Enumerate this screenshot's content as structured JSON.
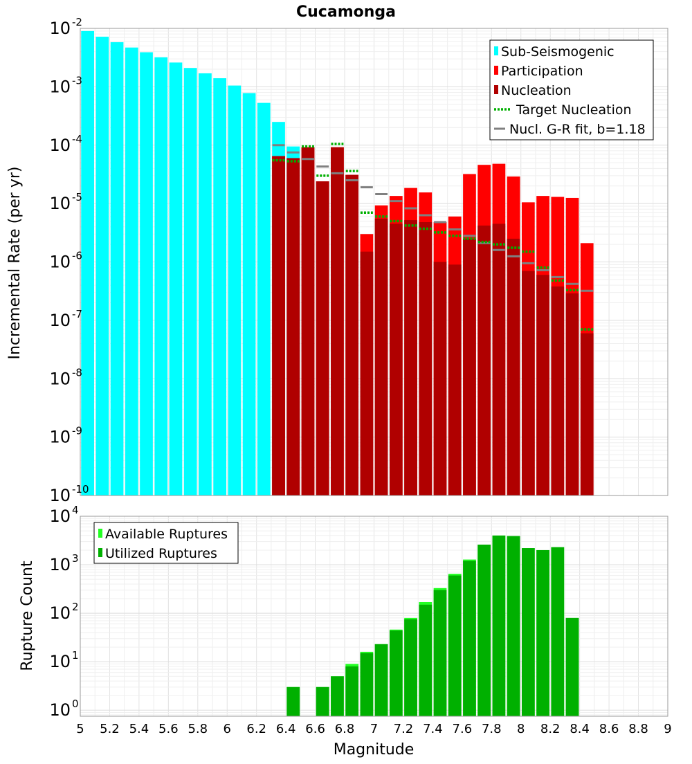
{
  "chart_data": [
    {
      "type": "bar",
      "title": "Cucamonga",
      "ylabel": "Incremental Rate (per yr)",
      "xlabel": "",
      "xlim": [
        5,
        9
      ],
      "ylim": [
        1e-10,
        0.01
      ],
      "yscale": "log",
      "y_ticks": [
        {
          "base": "10",
          "exp": "-2"
        },
        {
          "base": "10",
          "exp": "-3"
        },
        {
          "base": "10",
          "exp": "-4"
        },
        {
          "base": "10",
          "exp": "-5"
        },
        {
          "base": "10",
          "exp": "-6"
        },
        {
          "base": "10",
          "exp": "-7"
        },
        {
          "base": "10",
          "exp": "-8"
        },
        {
          "base": "10",
          "exp": "-9"
        },
        {
          "base": "10",
          "exp": "-10"
        }
      ],
      "grid": true,
      "legend_position": "top-right",
      "colors": {
        "sub": "#00ffff",
        "participation": "#ff0000",
        "nucleation": "#b00000",
        "target": "#00b000",
        "gr_fit": "#808080"
      },
      "legend": [
        {
          "name": "Sub-Seismogenic",
          "style": "bar",
          "color": "#00ffff"
        },
        {
          "name": "Participation",
          "style": "bar",
          "color": "#ff0000"
        },
        {
          "name": "Nucleation",
          "style": "bar",
          "color": "#b00000"
        },
        {
          "name": "Target Nucleation",
          "style": "dotted",
          "color": "#00b000"
        },
        {
          "name": "Nucl. G-R fit, b=1.18",
          "style": "line",
          "color": "#808080"
        }
      ],
      "series": [
        {
          "name": "Sub-Seismogenic",
          "x": [
            5.05,
            5.15,
            5.25,
            5.35,
            5.45,
            5.55,
            5.65,
            5.75,
            5.85,
            5.95,
            6.05,
            6.15,
            6.25,
            6.35,
            6.45
          ],
          "values": [
            0.009,
            0.0072,
            0.0058,
            0.0047,
            0.0039,
            0.0032,
            0.0026,
            0.0021,
            0.0017,
            0.0014,
            0.00105,
            0.00078,
            0.00053,
            0.00025,
            9.5e-05
          ]
        },
        {
          "name": "Participation",
          "x": [
            6.35,
            6.45,
            6.55,
            6.65,
            6.75,
            6.85,
            6.95,
            7.05,
            7.15,
            7.25,
            7.35,
            7.45,
            7.55,
            7.65,
            7.75,
            7.85,
            7.95,
            8.05,
            8.15,
            8.25,
            8.35,
            8.45
          ],
          "values": [
            6.5e-05,
            6e-05,
            9.2e-05,
            2.4e-05,
            9.2e-05,
            3.1e-05,
            3e-06,
            9.3e-06,
            1.35e-05,
            1.85e-05,
            1.55e-05,
            4.8e-06,
            6e-06,
            3.2e-05,
            4.6e-05,
            4.8e-05,
            2.9e-05,
            1.05e-05,
            1.35e-05,
            1.3e-05,
            1.25e-05,
            2.1e-06
          ]
        },
        {
          "name": "Nucleation",
          "x": [
            6.35,
            6.45,
            6.55,
            6.65,
            6.75,
            6.85,
            6.95,
            7.05,
            7.15,
            7.25,
            7.35,
            7.45,
            7.55,
            7.65,
            7.75,
            7.85,
            7.95,
            8.05,
            8.15,
            8.25,
            8.35,
            8.45
          ],
          "values": [
            6.5e-05,
            6e-05,
            9.2e-05,
            2.4e-05,
            9.2e-05,
            3.1e-05,
            1.5e-06,
            5.5e-06,
            4.5e-06,
            5.2e-06,
            4.8e-06,
            1e-06,
            9e-07,
            2.5e-06,
            4.2e-06,
            4.5e-06,
            2.5e-06,
            7e-07,
            6e-07,
            3.8e-07,
            2.9e-07,
            6e-08
          ]
        },
        {
          "name": "Target Nucleation",
          "x": [
            6.35,
            6.45,
            6.55,
            6.65,
            6.75,
            6.85,
            6.95,
            7.05,
            7.15,
            7.25,
            7.35,
            7.45,
            7.55,
            7.65,
            7.75,
            7.85,
            7.95,
            8.05,
            8.15,
            8.25,
            8.35,
            8.45
          ],
          "values": [
            5.5e-05,
            5.3e-05,
            9.5e-05,
            3e-05,
            0.000105,
            3.6e-05,
            7e-06,
            6e-06,
            5e-06,
            4.2e-06,
            3.7e-06,
            3.2e-06,
            2.8e-06,
            2.5e-06,
            2.2e-06,
            2e-06,
            1.75e-06,
            1.5e-06,
            8e-07,
            4.8e-07,
            3.3e-07,
            7e-08
          ]
        },
        {
          "name": "Nucl. G-R fit, b=1.18",
          "x": [
            6.35,
            6.45,
            6.55,
            6.65,
            6.75,
            6.85,
            6.95,
            7.05,
            7.15,
            7.25,
            7.35,
            7.45,
            7.55,
            7.65,
            7.75,
            7.85,
            7.95,
            8.05,
            8.15,
            8.25,
            8.35,
            8.45
          ],
          "values": [
            0.0001,
            7.5e-05,
            5.8e-05,
            4.3e-05,
            3.3e-05,
            2.5e-05,
            1.9e-05,
            1.45e-05,
            1.1e-05,
            8.3e-06,
            6.3e-06,
            4.8e-06,
            3.6e-06,
            2.8e-06,
            2.1e-06,
            1.6e-06,
            1.25e-06,
            9.5e-07,
            7.2e-07,
            5.5e-07,
            4.2e-07,
            3.2e-07
          ]
        }
      ]
    },
    {
      "type": "bar",
      "title": "",
      "ylabel": "Rupture Count",
      "xlabel": "Magnitude",
      "xlim": [
        5,
        9
      ],
      "ylim": [
        0.75,
        10000.0
      ],
      "yscale": "log",
      "x_ticks": [
        "5",
        "5.2",
        "5.4",
        "5.6",
        "5.8",
        "6",
        "6.2",
        "6.4",
        "6.6",
        "6.8",
        "7",
        "7.2",
        "7.4",
        "7.6",
        "7.8",
        "8",
        "8.2",
        "8.4",
        "8.6",
        "8.8",
        "9"
      ],
      "y_ticks": [
        {
          "base": "10",
          "exp": "4"
        },
        {
          "base": "10",
          "exp": "3"
        },
        {
          "base": "10",
          "exp": "2"
        },
        {
          "base": "10",
          "exp": "1"
        },
        {
          "base": "10",
          "exp": "0"
        }
      ],
      "grid": true,
      "legend_position": "top-left",
      "colors": {
        "available": "#22ff22",
        "utilized": "#00b000"
      },
      "legend": [
        {
          "name": "Available Ruptures",
          "style": "bar",
          "color": "#22ff22"
        },
        {
          "name": "Utilized Ruptures",
          "style": "bar",
          "color": "#00b000"
        }
      ],
      "series": [
        {
          "name": "Available Ruptures",
          "x": [
            6.45,
            6.65,
            6.75,
            6.85,
            6.95,
            7.05,
            7.15,
            7.25,
            7.35,
            7.45,
            7.55,
            7.65,
            7.75,
            7.85,
            7.95,
            8.05,
            8.15,
            8.25,
            8.35
          ],
          "values": [
            3,
            3,
            5,
            9,
            16,
            23,
            46,
            80,
            170,
            330,
            650,
            1280,
            2600,
            4000,
            3900,
            2200,
            2000,
            2300,
            80
          ]
        },
        {
          "name": "Utilized Ruptures",
          "x": [
            6.45,
            6.65,
            6.75,
            6.85,
            6.95,
            7.05,
            7.15,
            7.25,
            7.35,
            7.45,
            7.55,
            7.65,
            7.75,
            7.85,
            7.95,
            8.05,
            8.15,
            8.25,
            8.35
          ],
          "values": [
            3,
            3,
            5,
            8,
            15,
            23,
            44,
            75,
            150,
            300,
            600,
            1200,
            2600,
            4000,
            3900,
            2200,
            2000,
            2300,
            80
          ]
        }
      ]
    }
  ]
}
